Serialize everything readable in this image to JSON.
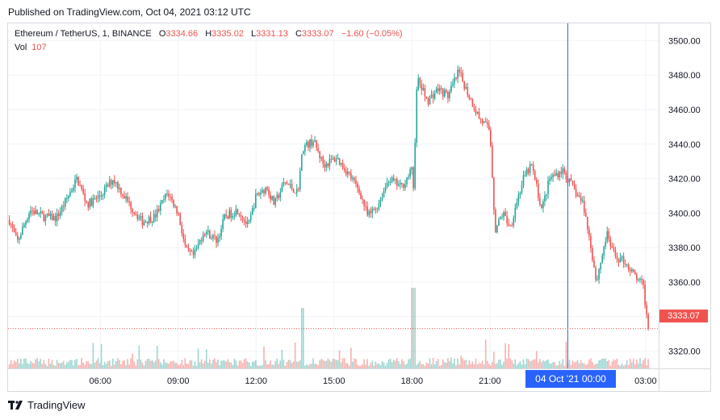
{
  "header": {
    "published": "Published on TradingView.com, Oct 04, 2021 03:12 UTC"
  },
  "legend": {
    "symbol": "Ethereum / TetherUS, 1, BINANCE",
    "open_label": "O",
    "open": "3334.66",
    "high_label": "H",
    "high": "3335.02",
    "low_label": "L",
    "low": "3331.13",
    "close_label": "C",
    "close": "3333.07",
    "change": "−1.60 (−0.05%)",
    "vol_label": "Vol",
    "vol": "107"
  },
  "price_tag": "3333.07",
  "crosshair_label": "04 Oct '21   00:00",
  "footer": {
    "brand": "TradingView",
    "logo_icon": "tradingview-logo-icon"
  },
  "colors": {
    "up": "#26a69a",
    "down": "#ef5350",
    "crosshair": "#2962ff",
    "grid": "#f0f3fa"
  },
  "chart_data": {
    "type": "candlestick",
    "interval": "1 minute",
    "y_ticks": [
      3320,
      3340,
      3360,
      3380,
      3400,
      3420,
      3440,
      3460,
      3480,
      3500
    ],
    "ylim": [
      3310,
      3510
    ],
    "x_ticks": [
      {
        "label": "06:00",
        "hour": 6
      },
      {
        "label": "09:00",
        "hour": 9
      },
      {
        "label": "12:00",
        "hour": 12
      },
      {
        "label": "15:00",
        "hour": 15
      },
      {
        "label": "18:00",
        "hour": 18
      },
      {
        "label": "21:00",
        "hour": 21
      },
      {
        "label": "03:00",
        "hour": 27
      }
    ],
    "xlim_hours": [
      2.45,
      27.5
    ],
    "crosshair_hour": 24,
    "last_close": 3333.07,
    "price_path": [
      {
        "h": 2.5,
        "p": 3396
      },
      {
        "h": 2.8,
        "p": 3383
      },
      {
        "h": 3.3,
        "p": 3402
      },
      {
        "h": 3.8,
        "p": 3398
      },
      {
        "h": 4.3,
        "p": 3397
      },
      {
        "h": 4.6,
        "p": 3405
      },
      {
        "h": 5.1,
        "p": 3420
      },
      {
        "h": 5.5,
        "p": 3405
      },
      {
        "h": 6.0,
        "p": 3410
      },
      {
        "h": 6.5,
        "p": 3420
      },
      {
        "h": 7.0,
        "p": 3408
      },
      {
        "h": 7.6,
        "p": 3395
      },
      {
        "h": 8.1,
        "p": 3398
      },
      {
        "h": 8.6,
        "p": 3412
      },
      {
        "h": 9.0,
        "p": 3400
      },
      {
        "h": 9.3,
        "p": 3378
      },
      {
        "h": 9.6,
        "p": 3375
      },
      {
        "h": 10.0,
        "p": 3390
      },
      {
        "h": 10.5,
        "p": 3384
      },
      {
        "h": 10.8,
        "p": 3398
      },
      {
        "h": 11.3,
        "p": 3402
      },
      {
        "h": 11.7,
        "p": 3392
      },
      {
        "h": 12.0,
        "p": 3410
      },
      {
        "h": 12.4,
        "p": 3415
      },
      {
        "h": 12.7,
        "p": 3405
      },
      {
        "h": 13.1,
        "p": 3418
      },
      {
        "h": 13.6,
        "p": 3412
      },
      {
        "h": 13.8,
        "p": 3438
      },
      {
        "h": 14.2,
        "p": 3442
      },
      {
        "h": 14.6,
        "p": 3428
      },
      {
        "h": 15.1,
        "p": 3432
      },
      {
        "h": 15.6,
        "p": 3422
      },
      {
        "h": 16.0,
        "p": 3412
      },
      {
        "h": 16.3,
        "p": 3398
      },
      {
        "h": 16.7,
        "p": 3405
      },
      {
        "h": 17.1,
        "p": 3420
      },
      {
        "h": 17.6,
        "p": 3415
      },
      {
        "h": 18.0,
        "p": 3425
      },
      {
        "h": 18.05,
        "p": 3412
      },
      {
        "h": 18.2,
        "p": 3478
      },
      {
        "h": 18.6,
        "p": 3465
      },
      {
        "h": 19.0,
        "p": 3472
      },
      {
        "h": 19.4,
        "p": 3468
      },
      {
        "h": 19.8,
        "p": 3482
      },
      {
        "h": 20.2,
        "p": 3468
      },
      {
        "h": 20.6,
        "p": 3455
      },
      {
        "h": 21.0,
        "p": 3448
      },
      {
        "h": 21.1,
        "p": 3420
      },
      {
        "h": 21.2,
        "p": 3390
      },
      {
        "h": 21.5,
        "p": 3400
      },
      {
        "h": 21.8,
        "p": 3392
      },
      {
        "h": 22.0,
        "p": 3405
      },
      {
        "h": 22.3,
        "p": 3420
      },
      {
        "h": 22.6,
        "p": 3428
      },
      {
        "h": 23.0,
        "p": 3402
      },
      {
        "h": 23.3,
        "p": 3420
      },
      {
        "h": 23.8,
        "p": 3425
      },
      {
        "h": 24.3,
        "p": 3412
      },
      {
        "h": 24.6,
        "p": 3405
      },
      {
        "h": 24.9,
        "p": 3380
      },
      {
        "h": 25.1,
        "p": 3360
      },
      {
        "h": 25.5,
        "p": 3388
      },
      {
        "h": 25.8,
        "p": 3375
      },
      {
        "h": 26.2,
        "p": 3372
      },
      {
        "h": 26.5,
        "p": 3365
      },
      {
        "h": 26.9,
        "p": 3358
      },
      {
        "h": 27.1,
        "p": 3333
      }
    ]
  }
}
